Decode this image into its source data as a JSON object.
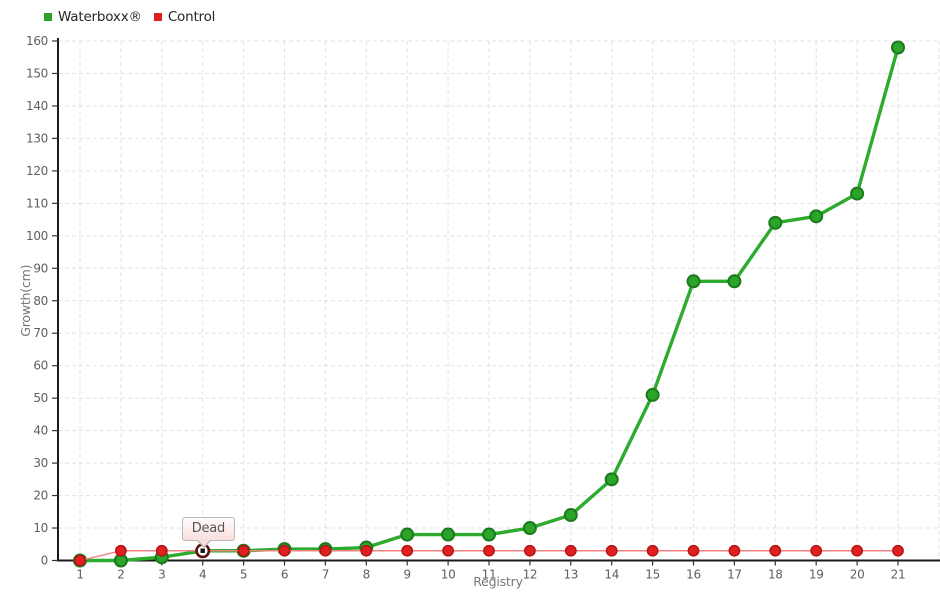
{
  "chart_data": {
    "type": "line",
    "title": "",
    "xlabel": "Registry",
    "ylabel": "Growth(cm)",
    "categories": [
      "1",
      "2",
      "3",
      "4",
      "5",
      "6",
      "7",
      "8",
      "9",
      "10",
      "11",
      "12",
      "13",
      "14",
      "15",
      "16",
      "17",
      "18",
      "19",
      "20",
      "21"
    ],
    "ylim": [
      0,
      160
    ],
    "ytick_step": 10,
    "y_ticks": [
      0,
      10,
      20,
      30,
      40,
      50,
      60,
      70,
      80,
      90,
      100,
      110,
      120,
      130,
      140,
      150,
      160
    ],
    "grid": "dashed",
    "grid_color": "#e2e2e2",
    "axis_color": "#1a1a1a",
    "tick_color": "#333333",
    "tick_label_color": "#5f5f5f",
    "axis_title_color": "#777777",
    "legend_position": "top-left",
    "background_color": "#ffffff",
    "series": [
      {
        "name": "Waterboxx®",
        "values": [
          0,
          0,
          1,
          3,
          3,
          3.5,
          3.5,
          4,
          8,
          8,
          8,
          10,
          14,
          25,
          51,
          86,
          86,
          104,
          106,
          113,
          158
        ],
        "line_color": "#2dab2d",
        "line_width": 3.4,
        "marker_color": "#2aa52a",
        "marker_stroke": "#1b7a1b",
        "marker_stroke_width": 2,
        "marker_radius": 6
      },
      {
        "name": "Control",
        "values": [
          0,
          3,
          3,
          3,
          3,
          3,
          3,
          3,
          3,
          3,
          3,
          3,
          3,
          3,
          3,
          3,
          3,
          3,
          3,
          3,
          3
        ],
        "line_color": "#f28282",
        "line_width": 1.4,
        "marker_color": "#e02020",
        "marker_stroke": "#b01414",
        "marker_stroke_width": 1.4,
        "marker_radius": 5.2
      }
    ],
    "annotation": {
      "label": "Dead",
      "series": "Waterboxx®",
      "x": 4,
      "y": 3,
      "marker_ring_color": "#5c1111",
      "marker_fill": "#ffffff",
      "marker_center_color": "#141414",
      "tooltip_border": "#b9b9b9"
    }
  }
}
